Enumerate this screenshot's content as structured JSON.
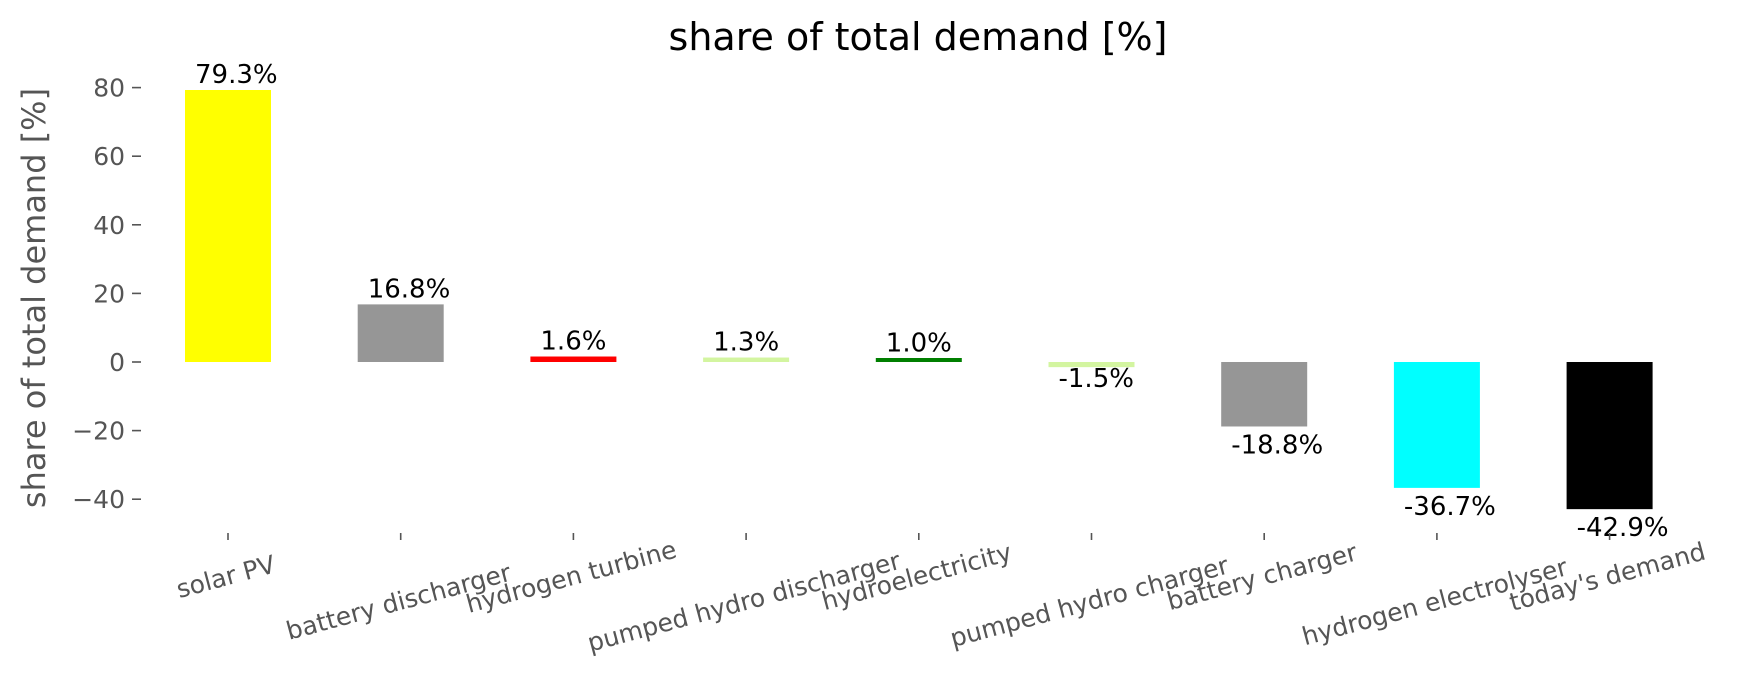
{
  "chart_data": {
    "type": "bar",
    "title": "share of total demand [%]",
    "xlabel": "",
    "ylabel": "share of total demand [%]",
    "categories": [
      "solar PV",
      "battery discharger",
      "hydrogen turbine",
      "pumped hydro discharger",
      "hydroelectricity",
      "pumped hydro charger",
      "battery charger",
      "hydrogen electrolyser",
      "today's demand"
    ],
    "values": [
      79.3,
      16.8,
      1.6,
      1.3,
      1.0,
      -1.5,
      -18.8,
      -36.7,
      -42.9
    ],
    "data_labels": [
      "79.3%",
      "16.8%",
      "1.6%",
      "1.3%",
      "1.0%",
      "-1.5%",
      "-18.8%",
      "-36.7%",
      "-42.9%"
    ],
    "colors": [
      "#ffff00",
      "#969696",
      "#ff0000",
      "#d3f5a0",
      "#007f00",
      "#d3f5a0",
      "#969696",
      "#00ffff",
      "#000000"
    ],
    "yticks": [
      80,
      60,
      40,
      20,
      0,
      -20,
      -40
    ],
    "ytick_labels": [
      "80",
      "60",
      "40",
      "20",
      "0",
      "−20",
      "−40"
    ],
    "ylim": [
      -50,
      85
    ],
    "grid": false,
    "legend": false
  }
}
